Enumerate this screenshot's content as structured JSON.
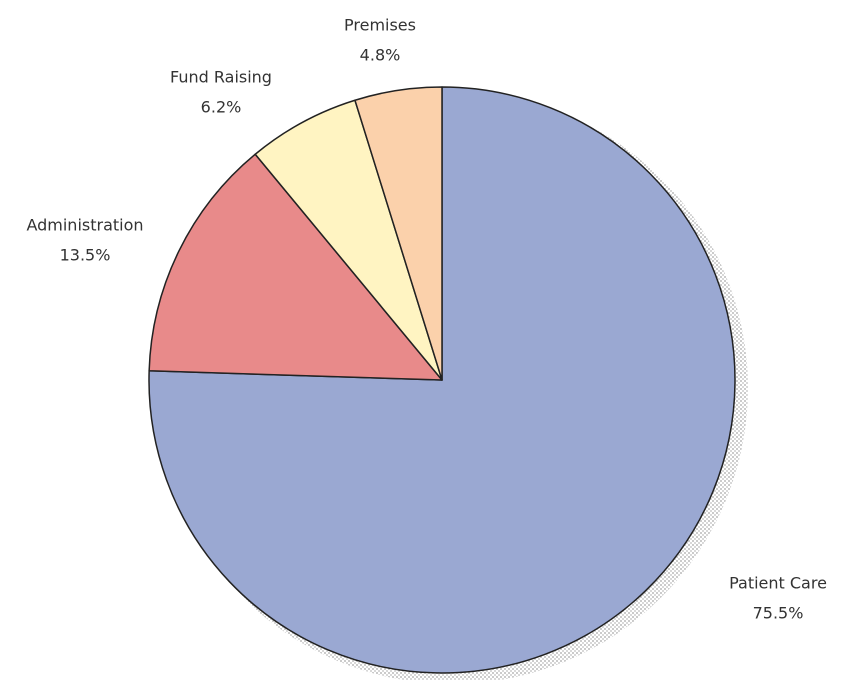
{
  "chart_data": {
    "type": "pie",
    "categories": [
      "Patient Care",
      "Administration",
      "Fund Raising",
      "Premises"
    ],
    "values": [
      75.5,
      13.5,
      6.2,
      4.8
    ],
    "value_labels": [
      "75.5%",
      "13.5%",
      "6.2%",
      "4.8%"
    ],
    "colors": [
      "#9aa8d2",
      "#e88a8a",
      "#fff4c2",
      "#fbd1ab"
    ]
  }
}
